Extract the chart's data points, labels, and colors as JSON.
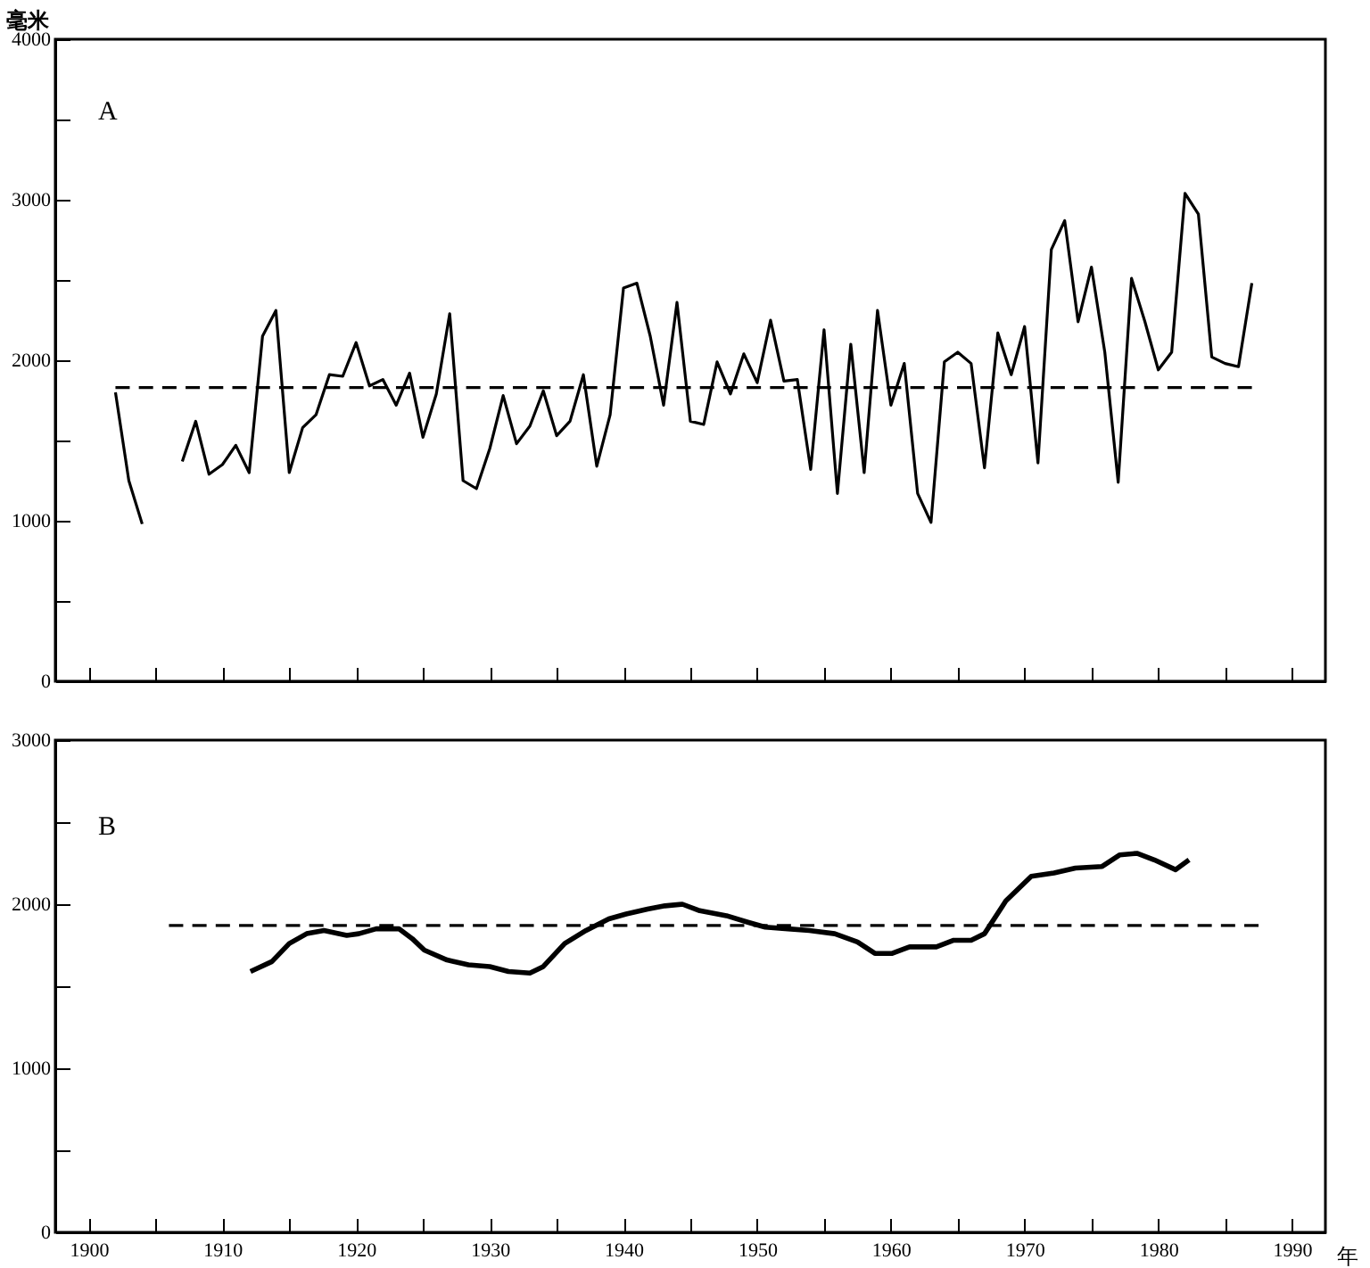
{
  "chart_data": [
    {
      "type": "line",
      "ylabel": "毫米",
      "annotations": [
        "A"
      ],
      "xlim": [
        1897.5,
        1992.5
      ],
      "ylim": [
        0,
        4000
      ],
      "xticks": [
        {
          "value": 1900,
          "label": null
        },
        {
          "value": 1905,
          "label": null
        },
        {
          "value": 1910,
          "label": null
        },
        {
          "value": 1915,
          "label": null
        },
        {
          "value": 1920,
          "label": null
        },
        {
          "value": 1925,
          "label": null
        },
        {
          "value": 1930,
          "label": null
        },
        {
          "value": 1935,
          "label": null
        },
        {
          "value": 1940,
          "label": null
        },
        {
          "value": 1945,
          "label": null
        },
        {
          "value": 1950,
          "label": null
        },
        {
          "value": 1955,
          "label": null
        },
        {
          "value": 1960,
          "label": null
        },
        {
          "value": 1965,
          "label": null
        },
        {
          "value": 1970,
          "label": null
        },
        {
          "value": 1975,
          "label": null
        },
        {
          "value": 1980,
          "label": null
        },
        {
          "value": 1985,
          "label": null
        },
        {
          "value": 1990,
          "label": null
        }
      ],
      "yticks": [
        0,
        {
          "value": 500,
          "label": null
        },
        1000,
        {
          "value": 1500,
          "label": null
        },
        2000,
        {
          "value": 2500,
          "label": null
        },
        3000,
        {
          "value": 3500,
          "label": null
        },
        4000
      ],
      "tick_labels": "y",
      "series": [
        {
          "color": "#000000",
          "line_style": "solid",
          "x": [
            1902,
            1903,
            1904,
            1905,
            1906,
            1907,
            1908,
            1909,
            1910,
            1911,
            1912,
            1913,
            1914,
            1915,
            1916,
            1917,
            1918,
            1919,
            1920,
            1921,
            1922,
            1923,
            1924,
            1925,
            1926,
            1927,
            1928,
            1929,
            1930,
            1931,
            1932,
            1933,
            1934,
            1935,
            1936,
            1937,
            1938,
            1939,
            1940,
            1941,
            1942,
            1943,
            1944,
            1945,
            1946,
            1947,
            1948,
            1949,
            1950,
            1951,
            1952,
            1953,
            1954,
            1955,
            1956,
            1957,
            1958,
            1959,
            1960,
            1961,
            1962,
            1963,
            1964,
            1965,
            1966,
            1967,
            1968,
            1969,
            1970,
            1971,
            1972,
            1973,
            1974,
            1975,
            1976,
            1977,
            1978,
            1979,
            1980,
            1981,
            1982,
            1983,
            1984,
            1985,
            1986,
            1987
          ],
          "values": [
            1800,
            1250,
            980,
            null,
            null,
            1370,
            1620,
            1290,
            1350,
            1470,
            1300,
            2150,
            2310,
            1300,
            1580,
            1660,
            1910,
            1900,
            2110,
            1840,
            1880,
            1720,
            1920,
            1520,
            1790,
            2290,
            1250,
            1200,
            1450,
            1780,
            1480,
            1590,
            1810,
            1530,
            1620,
            1910,
            1340,
            1660,
            2450,
            2480,
            2150,
            1720,
            2360,
            1620,
            1600,
            1990,
            1790,
            2040,
            1860,
            2250,
            1870,
            1880,
            1320,
            2190,
            1170,
            2100,
            1300,
            2310,
            1720,
            1980,
            1170,
            990,
            1990,
            2050,
            1980,
            1330,
            2170,
            1910,
            2210,
            1360,
            2690,
            2870,
            2240,
            2580,
            2050,
            1240,
            2510,
            2240,
            1940,
            2050,
            3040,
            2910,
            2020,
            1980,
            1960,
            2480
          ]
        },
        {
          "color": "#000000",
          "line_style": "dashed",
          "x": [
            1902,
            1987
          ],
          "values": [
            1830,
            1830
          ]
        }
      ]
    },
    {
      "type": "line",
      "xlabel": "年",
      "annotations": [
        "B"
      ],
      "xlim": [
        1897.5,
        1992.5
      ],
      "ylim": [
        0,
        3000
      ],
      "xticks": [
        1900,
        {
          "value": 1905,
          "label": null
        },
        1910,
        {
          "value": 1915,
          "label": null
        },
        1920,
        {
          "value": 1925,
          "label": null
        },
        1930,
        {
          "value": 1935,
          "label": null
        },
        1940,
        {
          "value": 1945,
          "label": null
        },
        1950,
        {
          "value": 1955,
          "label": null
        },
        1960,
        {
          "value": 1965,
          "label": null
        },
        1970,
        {
          "value": 1975,
          "label": null
        },
        1980,
        {
          "value": 1985,
          "label": null
        },
        1990
      ],
      "yticks": [
        0,
        {
          "value": 500,
          "label": null
        },
        1000,
        {
          "value": 1500,
          "label": null
        },
        2000,
        {
          "value": 2500,
          "label": null
        },
        3000
      ],
      "series": [
        {
          "color": "#000000",
          "line_style": "solid",
          "x": [
            1912.1,
            1913.7,
            1915,
            1916.3,
            1917.6,
            1919.3,
            1920.2,
            1921.5,
            1923.2,
            1924.2,
            1925.1,
            1926.8,
            1928.4,
            1930,
            1931.4,
            1933,
            1934,
            1935.6,
            1937.2,
            1938.9,
            1940.2,
            1941.8,
            1943.1,
            1944.4,
            1945.7,
            1947.7,
            1949.3,
            1950.6,
            1952.3,
            1953.9,
            1955.8,
            1957.5,
            1958.8,
            1960.1,
            1961.4,
            1963.4,
            1964.7,
            1966,
            1967,
            1968.6,
            1970.5,
            1972.2,
            1973.8,
            1975.8,
            1977.1,
            1978.4,
            1979.7,
            1981.3,
            1982.3
          ],
          "values": [
            1590,
            1650,
            1760,
            1820,
            1840,
            1810,
            1820,
            1850,
            1850,
            1790,
            1720,
            1660,
            1630,
            1620,
            1590,
            1580,
            1620,
            1760,
            1840,
            1910,
            1940,
            1970,
            1990,
            2000,
            1960,
            1930,
            1890,
            1860,
            1850,
            1840,
            1820,
            1770,
            1700,
            1700,
            1740,
            1740,
            1780,
            1780,
            1820,
            2020,
            2170,
            2190,
            2220,
            2230,
            2300,
            2310,
            2270,
            2210,
            2270
          ]
        },
        {
          "color": "#000000",
          "line_style": "dashed",
          "x": [
            1906,
            1987.5
          ],
          "values": [
            1870,
            1870
          ]
        }
      ]
    }
  ]
}
